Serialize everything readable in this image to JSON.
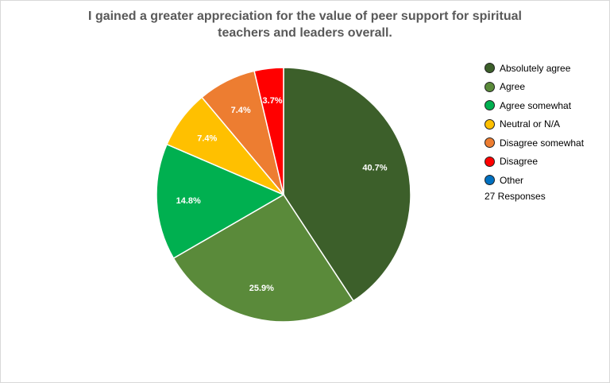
{
  "chart_data": {
    "type": "pie",
    "title_lines": [
      "I gained a greater appreciation for the value of peer support for spiritual",
      "teachers and leaders overall."
    ],
    "legend_position": "right",
    "categories": [
      "Absolutely agree",
      "Agree",
      "Agree somewhat",
      "Neutral or N/A",
      "Disagree somewhat",
      "Disagree",
      "Other"
    ],
    "values": [
      40.7,
      25.9,
      14.8,
      7.4,
      7.4,
      3.7,
      0
    ],
    "labels": [
      "40.7%",
      "25.9%",
      "14.8%",
      "7.4%",
      "7.4%",
      "3.7%",
      ""
    ],
    "colors": [
      "#3c5f2a",
      "#5a8a3a",
      "#00b050",
      "#ffc000",
      "#ed7d31",
      "#ff0000",
      "#0070c0"
    ],
    "responses_text": "27 Responses"
  }
}
